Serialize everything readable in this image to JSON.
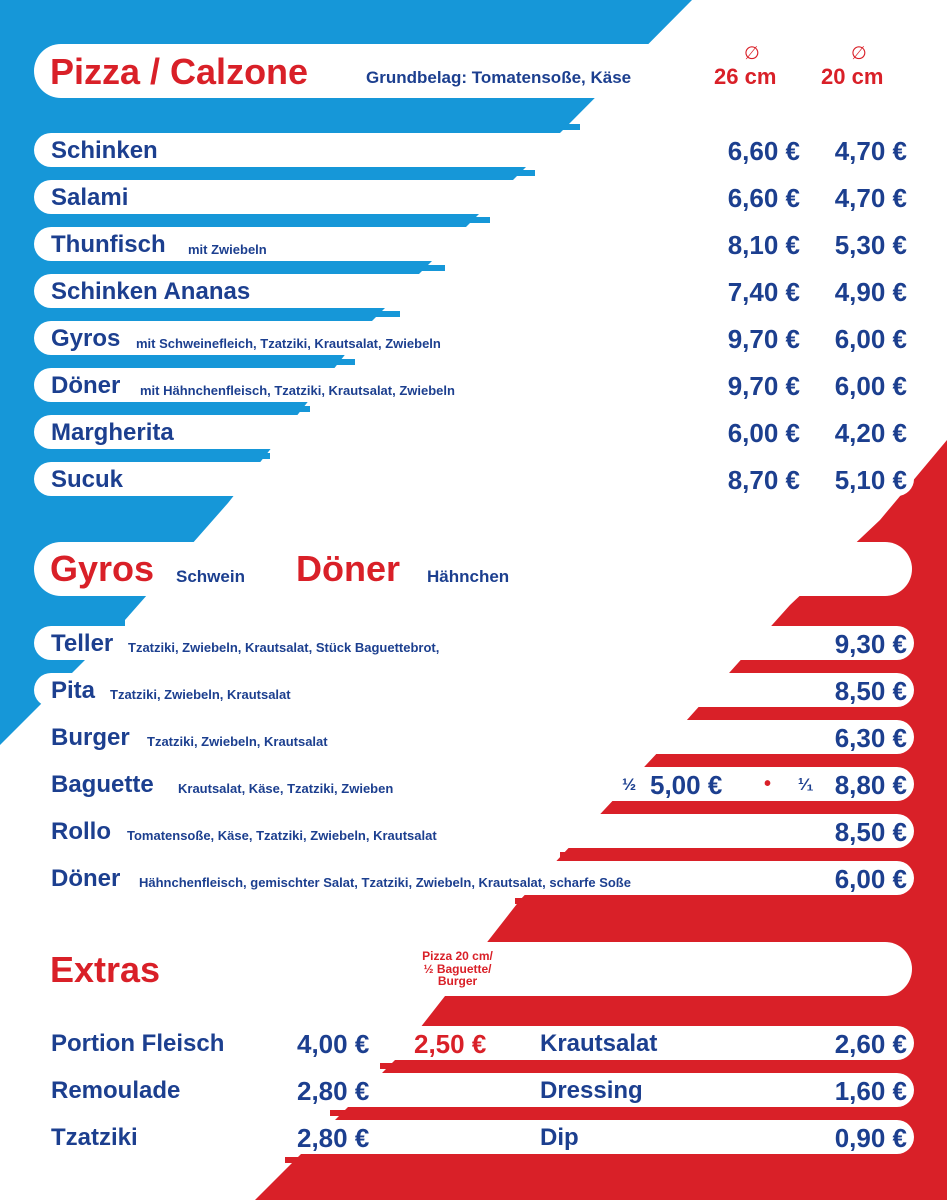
{
  "pizza": {
    "title": "Pizza / Calzone",
    "subtitle": "Grundbelag: Tomatensoße, Käse",
    "diameter_symbol": "∅",
    "size_large": "26 cm",
    "size_small": "20 cm",
    "items": [
      {
        "name": "Schinken",
        "desc": "",
        "p26": "6,60 €",
        "p20": "4,70 €"
      },
      {
        "name": "Salami",
        "desc": "",
        "p26": "6,60 €",
        "p20": "4,70 €"
      },
      {
        "name": "Thunfisch",
        "desc": "mit Zwiebeln",
        "p26": "8,10 €",
        "p20": "5,30 €"
      },
      {
        "name": "Schinken Ananas",
        "desc": "",
        "p26": "7,40 €",
        "p20": "4,90 €"
      },
      {
        "name": "Gyros",
        "desc": "mit Schweinefleich, Tzatziki, Krautsalat, Zwiebeln",
        "p26": "9,70 €",
        "p20": "6,00 €"
      },
      {
        "name": "Döner",
        "desc": "mit Hähnchenfleisch, Tzatziki, Krautsalat, Zwiebeln",
        "p26": "9,70 €",
        "p20": "6,00 €"
      },
      {
        "name": "Margherita",
        "desc": "",
        "p26": "6,00 €",
        "p20": "4,20 €"
      },
      {
        "name": "Sucuk",
        "desc": "",
        "p26": "8,70 €",
        "p20": "5,10 €"
      }
    ]
  },
  "gyros": {
    "title1": "Gyros",
    "sub1": "Schwein",
    "title2": "Döner",
    "sub2": "Hähnchen",
    "items": [
      {
        "name": "Teller",
        "desc": "Tzatziki, Zwiebeln, Krautsalat, Stück Baguettebrot,",
        "price": "9,30 €"
      },
      {
        "name": "Pita",
        "desc": "Tzatziki, Zwiebeln, Krautsalat",
        "price": "8,50 €"
      },
      {
        "name": "Burger",
        "desc": "Tzatziki, Zwiebeln, Krautsalat",
        "price": "6,30 €"
      },
      {
        "name": "Baguette",
        "desc": "Krautsalat, Käse, Tzatziki, Zwieben",
        "price": "8,80 €"
      },
      {
        "name": "Rollo",
        "desc": "Tomatensoße, Käse, Tzatziki, Zwiebeln, Krautsalat",
        "price": "8,50 €"
      },
      {
        "name": "Döner",
        "desc": "Hähnchenfleisch, gemischter Salat, Tzatziki, Zwiebeln, Krautsalat, scharfe Soße",
        "price": "6,00 €"
      }
    ],
    "baguette_half_mark": "½",
    "baguette_half_price": "5,00 €",
    "baguette_bullet": "•",
    "baguette_full_mark": "¹⁄₁"
  },
  "extras": {
    "title": "Extras",
    "note_line1": "Pizza 20 cm/",
    "note_line2": "½ Baguette/",
    "note_line3": "Burger",
    "left": [
      {
        "name": "Portion Fleisch",
        "price": "4,00 €",
        "price_small": "2,50 €"
      },
      {
        "name": "Remoulade",
        "price": "2,80 €"
      },
      {
        "name": "Tzatziki",
        "price": "2,80 €"
      }
    ],
    "right": [
      {
        "name": "Krautsalat",
        "price": "2,60 €"
      },
      {
        "name": "Dressing",
        "price": "1,60 €"
      },
      {
        "name": "Dip",
        "price": "0,90 €"
      }
    ]
  },
  "colors": {
    "blue": "#1c3f8f",
    "red": "#d92028",
    "cyan": "#1697d8"
  }
}
